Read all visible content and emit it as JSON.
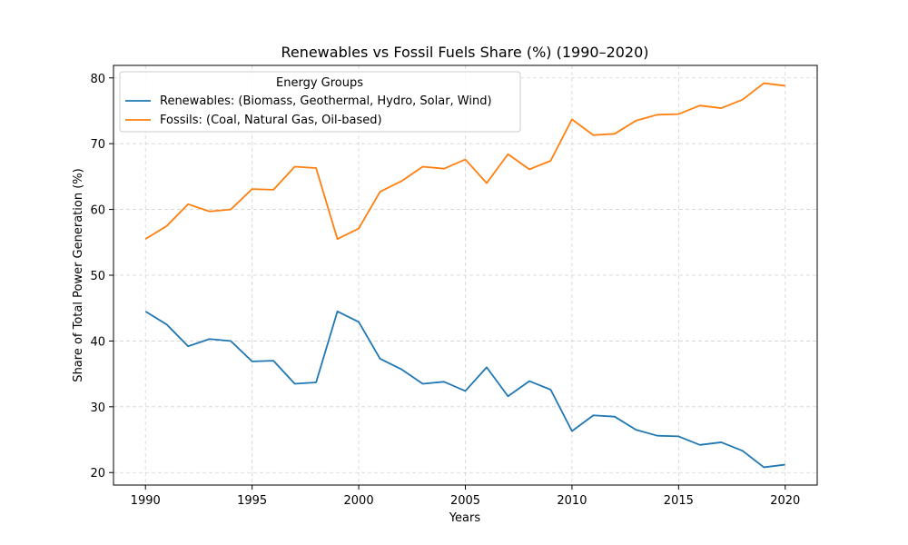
{
  "chart_data": {
    "type": "line",
    "title": "Renewables vs Fossil Fuels Share (%) (1990–2020)",
    "xlabel": "Years",
    "ylabel": "Share of Total Power Generation (%)",
    "xlim": [
      1988.5,
      2021.5
    ],
    "ylim": [
      18.1,
      81.9
    ],
    "xticks": [
      1990,
      1995,
      2000,
      2005,
      2010,
      2015,
      2020
    ],
    "yticks": [
      20,
      30,
      40,
      50,
      60,
      70,
      80
    ],
    "grid": true,
    "legend": {
      "title": "Energy Groups",
      "placement": "top-left"
    },
    "x": [
      1990,
      1991,
      1992,
      1993,
      1994,
      1995,
      1996,
      1997,
      1998,
      1999,
      2000,
      2001,
      2002,
      2003,
      2004,
      2005,
      2006,
      2007,
      2008,
      2009,
      2010,
      2011,
      2012,
      2013,
      2014,
      2015,
      2016,
      2017,
      2018,
      2019,
      2020
    ],
    "series": [
      {
        "name": "Renewables: (Biomass, Geothermal, Hydro, Solar, Wind)",
        "color": "#1f77b4",
        "values": [
          44.5,
          42.5,
          39.2,
          40.3,
          40.0,
          36.9,
          37.0,
          33.5,
          33.7,
          44.5,
          42.9,
          37.3,
          35.7,
          33.5,
          33.8,
          32.4,
          36.0,
          31.6,
          33.9,
          32.6,
          26.3,
          28.7,
          28.5,
          26.5,
          25.6,
          25.5,
          24.2,
          24.6,
          23.3,
          20.8,
          21.2
        ]
      },
      {
        "name": "Fossils: (Coal, Natural Gas, Oil-based)",
        "color": "#ff7f0e",
        "values": [
          55.5,
          57.5,
          60.8,
          59.7,
          60.0,
          63.1,
          63.0,
          66.5,
          66.3,
          55.5,
          57.1,
          62.7,
          64.3,
          66.5,
          66.2,
          67.6,
          64.0,
          68.4,
          66.1,
          67.4,
          73.7,
          71.3,
          71.5,
          73.5,
          74.4,
          74.5,
          75.8,
          75.4,
          76.7,
          79.2,
          78.8
        ]
      }
    ]
  }
}
